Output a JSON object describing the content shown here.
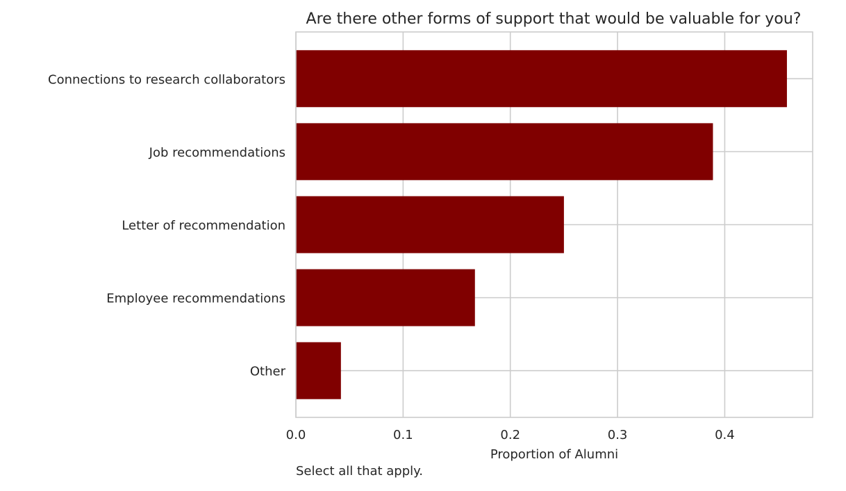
{
  "chart_data": {
    "type": "bar",
    "orientation": "horizontal",
    "title": "Are there other forms of support that would be valuable for you?",
    "xlabel": "Proportion of Alumni",
    "ylabel": "",
    "categories": [
      "Connections to research collaborators",
      "Job recommendations",
      "Letter of recommendation",
      "Employee recommendations",
      "Other"
    ],
    "values": [
      0.458,
      0.389,
      0.25,
      0.167,
      0.042
    ],
    "xlim": [
      0,
      0.482
    ],
    "xticks": [
      "0.0",
      "0.1",
      "0.2",
      "0.3",
      "0.4"
    ],
    "grid": true,
    "bar_color": "#800000",
    "note": "Select all that apply."
  }
}
